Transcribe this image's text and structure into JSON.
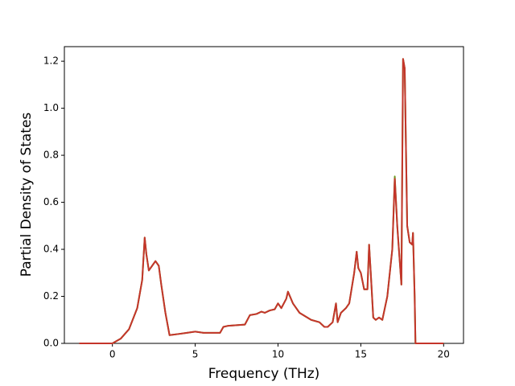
{
  "chart_data": {
    "type": "line",
    "x_label": "Frequency (THz)",
    "y_label": "Partial Density of States",
    "x": [
      -2,
      0,
      0.5,
      1,
      1.5,
      1.8,
      1.95,
      2.05,
      2.2,
      2.4,
      2.6,
      2.8,
      2.95,
      3.2,
      3.45,
      4,
      4.5,
      5,
      5.5,
      6,
      6.5,
      6.7,
      7,
      8,
      8.3,
      8.7,
      9,
      9.2,
      9.5,
      9.8,
      10,
      10.2,
      10.5,
      10.6,
      10.9,
      11.3,
      12,
      12.5,
      12.8,
      13,
      13.3,
      13.5,
      13.6,
      13.8,
      14.1,
      14.3,
      14.6,
      14.75,
      14.85,
      15.0,
      15.2,
      15.4,
      15.5,
      15.6,
      15.75,
      15.9,
      16.1,
      16.3,
      16.6,
      16.9,
      17.05,
      17.2,
      17.45,
      17.55,
      17.65,
      17.8,
      17.95,
      18.1,
      18.15,
      18.25,
      18.3,
      20
    ],
    "series": [
      {
        "color": "#6b9a1e",
        "values": [
          0,
          0,
          0.02,
          0.06,
          0.15,
          0.27,
          0.45,
          0.38,
          0.31,
          0.33,
          0.35,
          0.33,
          0.25,
          0.13,
          0.035,
          0.04,
          0.045,
          0.05,
          0.045,
          0.045,
          0.045,
          0.07,
          0.075,
          0.08,
          0.12,
          0.125,
          0.135,
          0.13,
          0.14,
          0.145,
          0.17,
          0.15,
          0.19,
          0.22,
          0.17,
          0.13,
          0.1,
          0.09,
          0.07,
          0.07,
          0.09,
          0.17,
          0.09,
          0.13,
          0.15,
          0.17,
          0.3,
          0.39,
          0.32,
          0.3,
          0.23,
          0.23,
          0.42,
          0.3,
          0.11,
          0.1,
          0.11,
          0.1,
          0.2,
          0.4,
          0.71,
          0.5,
          0.25,
          1.21,
          1.17,
          0.5,
          0.43,
          0.42,
          0.47,
          0.2,
          0,
          0
        ]
      },
      {
        "color": "#c4352b",
        "values": [
          0,
          0,
          0.02,
          0.06,
          0.15,
          0.27,
          0.45,
          0.38,
          0.31,
          0.33,
          0.35,
          0.33,
          0.25,
          0.13,
          0.035,
          0.04,
          0.045,
          0.05,
          0.045,
          0.045,
          0.045,
          0.07,
          0.075,
          0.08,
          0.12,
          0.125,
          0.135,
          0.13,
          0.14,
          0.145,
          0.17,
          0.15,
          0.19,
          0.22,
          0.17,
          0.13,
          0.1,
          0.09,
          0.07,
          0.07,
          0.09,
          0.17,
          0.09,
          0.13,
          0.15,
          0.17,
          0.3,
          0.39,
          0.32,
          0.3,
          0.23,
          0.23,
          0.42,
          0.3,
          0.11,
          0.1,
          0.11,
          0.1,
          0.2,
          0.4,
          0.7,
          0.5,
          0.25,
          1.21,
          1.17,
          0.5,
          0.43,
          0.42,
          0.47,
          0.2,
          0,
          0
        ]
      }
    ],
    "xlim": [
      -2.9,
      21.2
    ],
    "ylim": [
      0,
      1.262
    ],
    "xticks": [
      0,
      5,
      10,
      15,
      20
    ],
    "yticks": [
      {
        "value": 0,
        "label": "0.0"
      },
      0.2,
      0.4,
      0.6,
      0.8,
      {
        "value": 1,
        "label": "1.0"
      },
      1.2
    ]
  }
}
